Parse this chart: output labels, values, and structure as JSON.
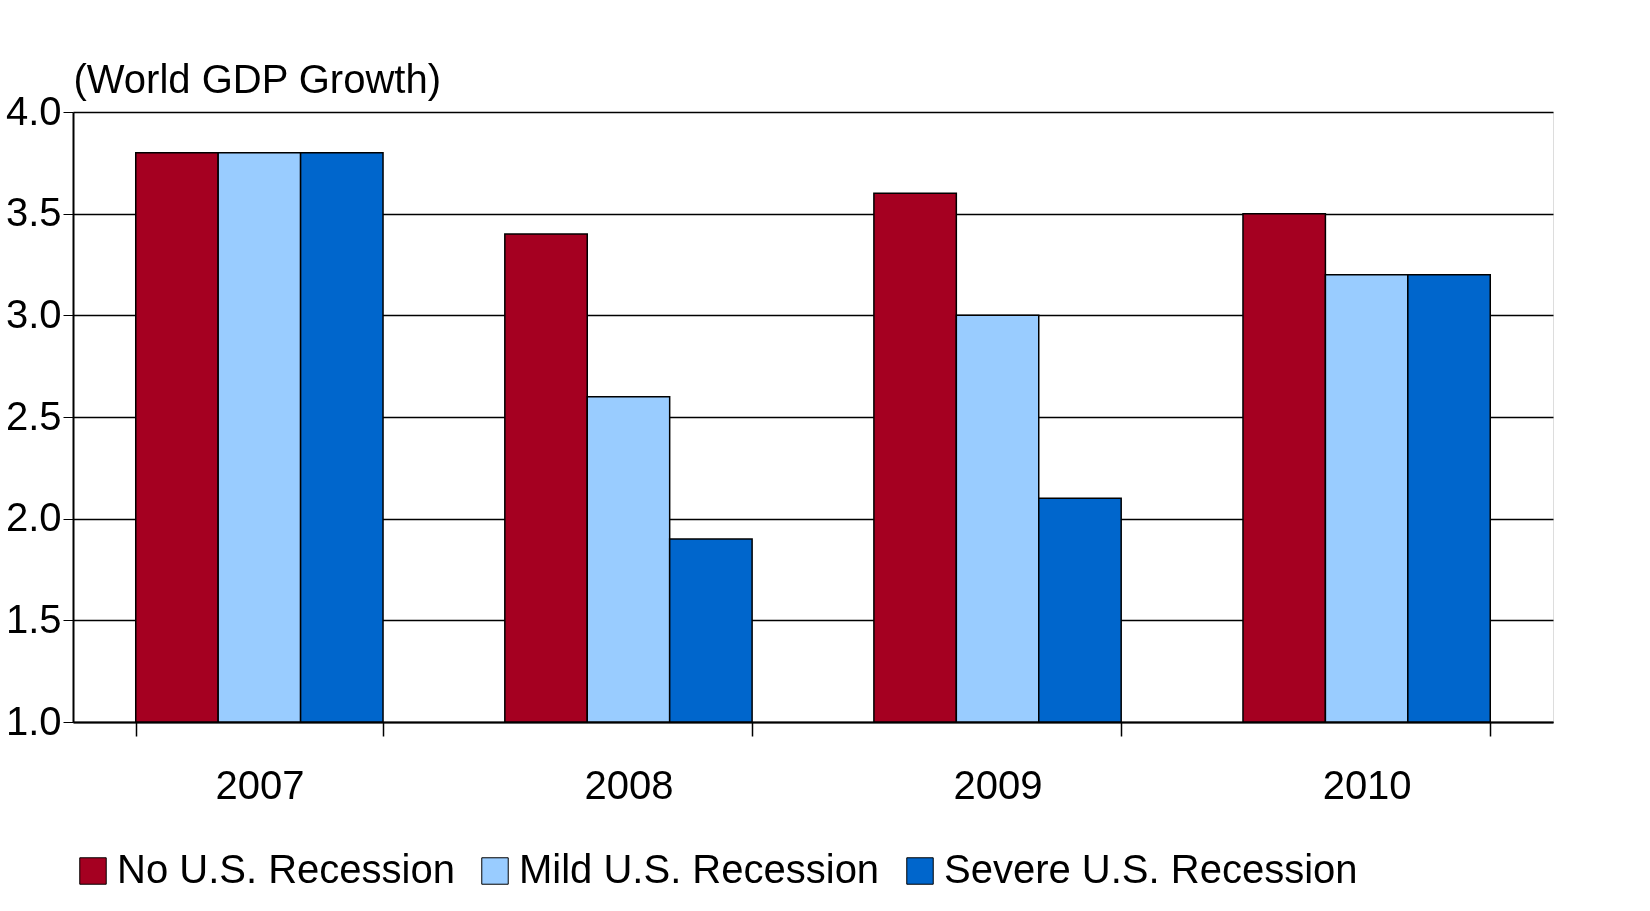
{
  "chart_data": {
    "type": "bar",
    "ylabel": "(World GDP Growth)",
    "categories": [
      "2007",
      "2008",
      "2009",
      "2010"
    ],
    "series": [
      {
        "name": "No U.S. Recession",
        "color": "#a50021",
        "values": [
          3.8,
          3.4,
          3.6,
          3.5
        ]
      },
      {
        "name": "Mild U.S. Recession",
        "color": "#99ccff",
        "values": [
          3.8,
          2.6,
          3.0,
          3.2
        ]
      },
      {
        "name": "Severe U.S. Recession",
        "color": "#0066cc",
        "values": [
          3.8,
          1.9,
          2.1,
          3.2
        ]
      }
    ],
    "ylim": [
      1.0,
      4.0
    ],
    "yticks": [
      {
        "value": 1.0,
        "label": "1.0"
      },
      {
        "value": 1.5,
        "label": "1.5"
      },
      {
        "value": 2.0,
        "label": "2.0"
      },
      {
        "value": 2.5,
        "label": "2.5"
      },
      {
        "value": 3.0,
        "label": "3.0"
      },
      {
        "value": 3.5,
        "label": "3.5"
      },
      {
        "value": 4.0,
        "label": "4.0"
      }
    ],
    "grid": "y",
    "legend": "bottom"
  }
}
